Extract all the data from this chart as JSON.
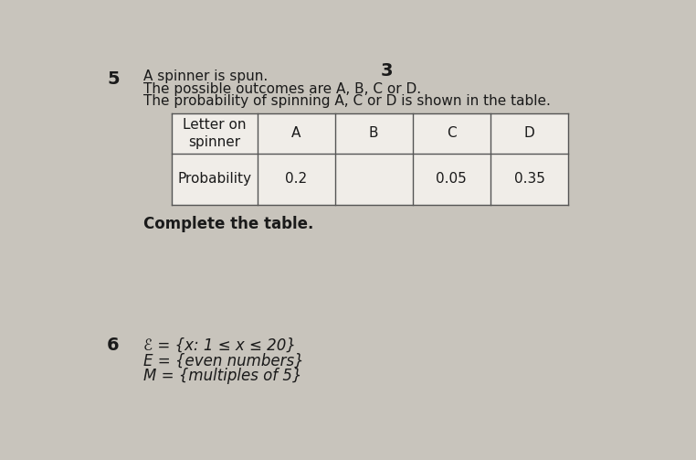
{
  "page_bg": "#c8c4bc",
  "table_bg": "#f0ede8",
  "question_number_5": "5",
  "question_number_3": "3",
  "question_number_6": "6",
  "line1": "A spinner is spun.",
  "line2": "The possible outcomes are A, B, C or D.",
  "line3": "The probability of spinning A, C or D is shown in the table.",
  "complete_text": "Complete the table.",
  "table_col0_header": "Letter on\nspinner",
  "table_headers": [
    "A",
    "B",
    "C",
    "D"
  ],
  "prob_row_label": "Probability",
  "prob_values": [
    "0.2",
    "",
    "0.05",
    "0.35"
  ],
  "set_line1_prefix": "ℰ = {x: 1 ≤ x ≤ 20}",
  "set_line2": "E = {even numbers}",
  "set_line3": "M = {multiples of 5}",
  "text_color": "#1a1a1a",
  "table_border_color": "#555555",
  "font_size_body": 11,
  "font_size_number": 14,
  "font_size_table": 11,
  "font_size_set": 12
}
